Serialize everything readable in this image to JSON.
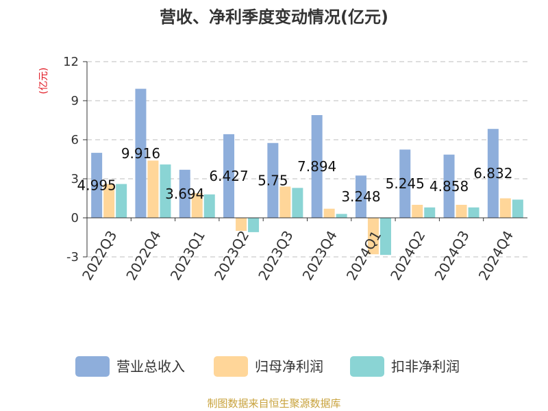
{
  "chart_data": {
    "type": "bar",
    "title": "营收、净利季度变动情况(亿元)",
    "ylabel": "(亿元)",
    "xlabel": "",
    "categories": [
      "2022Q3",
      "2022Q4",
      "2023Q1",
      "2023Q2",
      "2023Q3",
      "2023Q4",
      "2024Q1",
      "2024Q2",
      "2024Q3",
      "2024Q4"
    ],
    "ylim": [
      -3,
      12
    ],
    "yticks": [
      12,
      9,
      6,
      3,
      0,
      -3
    ],
    "grid": true,
    "legend_position": "bottom",
    "series": [
      {
        "name": "营业总收入",
        "color": "#8eaedb",
        "values": [
          4.995,
          9.916,
          3.694,
          6.427,
          5.75,
          7.894,
          3.248,
          5.245,
          4.858,
          6.832
        ]
      },
      {
        "name": "归母净利润",
        "color": "#ffd699",
        "values": [
          2.6,
          4.4,
          1.9,
          -1.0,
          2.4,
          0.7,
          -2.8,
          1.0,
          1.0,
          1.5
        ]
      },
      {
        "name": "扣非净利润",
        "color": "#8ad4d4",
        "values": [
          2.6,
          4.1,
          1.8,
          -1.1,
          2.3,
          0.3,
          -2.85,
          0.8,
          0.8,
          1.4
        ]
      }
    ],
    "data_labels": [
      "4.995",
      "9.916",
      "3.694",
      "6.427",
      "5.75",
      "7.894",
      "3.248",
      "5.245",
      "4.858",
      "6.832"
    ],
    "source": "制图数据来自恒生聚源数据库"
  }
}
